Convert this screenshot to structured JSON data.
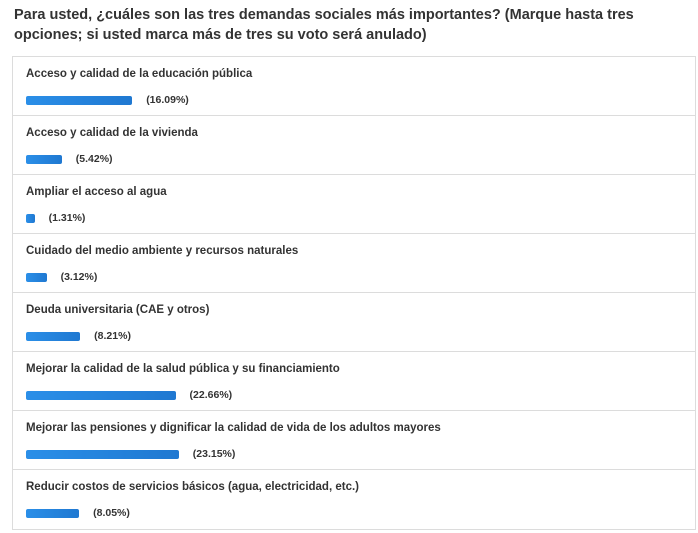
{
  "question": "Para usted, ¿cuáles son las tres demandas sociales más importantes? (Marque hasta tres opciones; si usted marca más de tres su voto será anulado)",
  "options": [
    {
      "label": "Acceso y calidad de la educación pública",
      "percent_text": "(16.09%)",
      "percent": 16.09
    },
    {
      "label": "Acceso y calidad de la vivienda",
      "percent_text": "(5.42%)",
      "percent": 5.42
    },
    {
      "label": "Ampliar el acceso al agua",
      "percent_text": "(1.31%)",
      "percent": 1.31
    },
    {
      "label": "Cuidado del medio ambiente y recursos naturales",
      "percent_text": "(3.12%)",
      "percent": 3.12
    },
    {
      "label": "Deuda universitaria (CAE y otros)",
      "percent_text": "(8.21%)",
      "percent": 8.21
    },
    {
      "label": "Mejorar la calidad de la salud pública y su financiamiento",
      "percent_text": "(22.66%)",
      "percent": 22.66
    },
    {
      "label": "Mejorar las pensiones y dignificar la calidad de vida de los adultos mayores",
      "percent_text": "(23.15%)",
      "percent": 23.15
    },
    {
      "label": "Reducir costos de servicios básicos (agua, electricidad, etc.)",
      "percent_text": "(8.05%)",
      "percent": 8.05
    }
  ],
  "colors": {
    "bar": "#1f78d1",
    "text": "#333333",
    "border": "#dcdcdc"
  }
}
